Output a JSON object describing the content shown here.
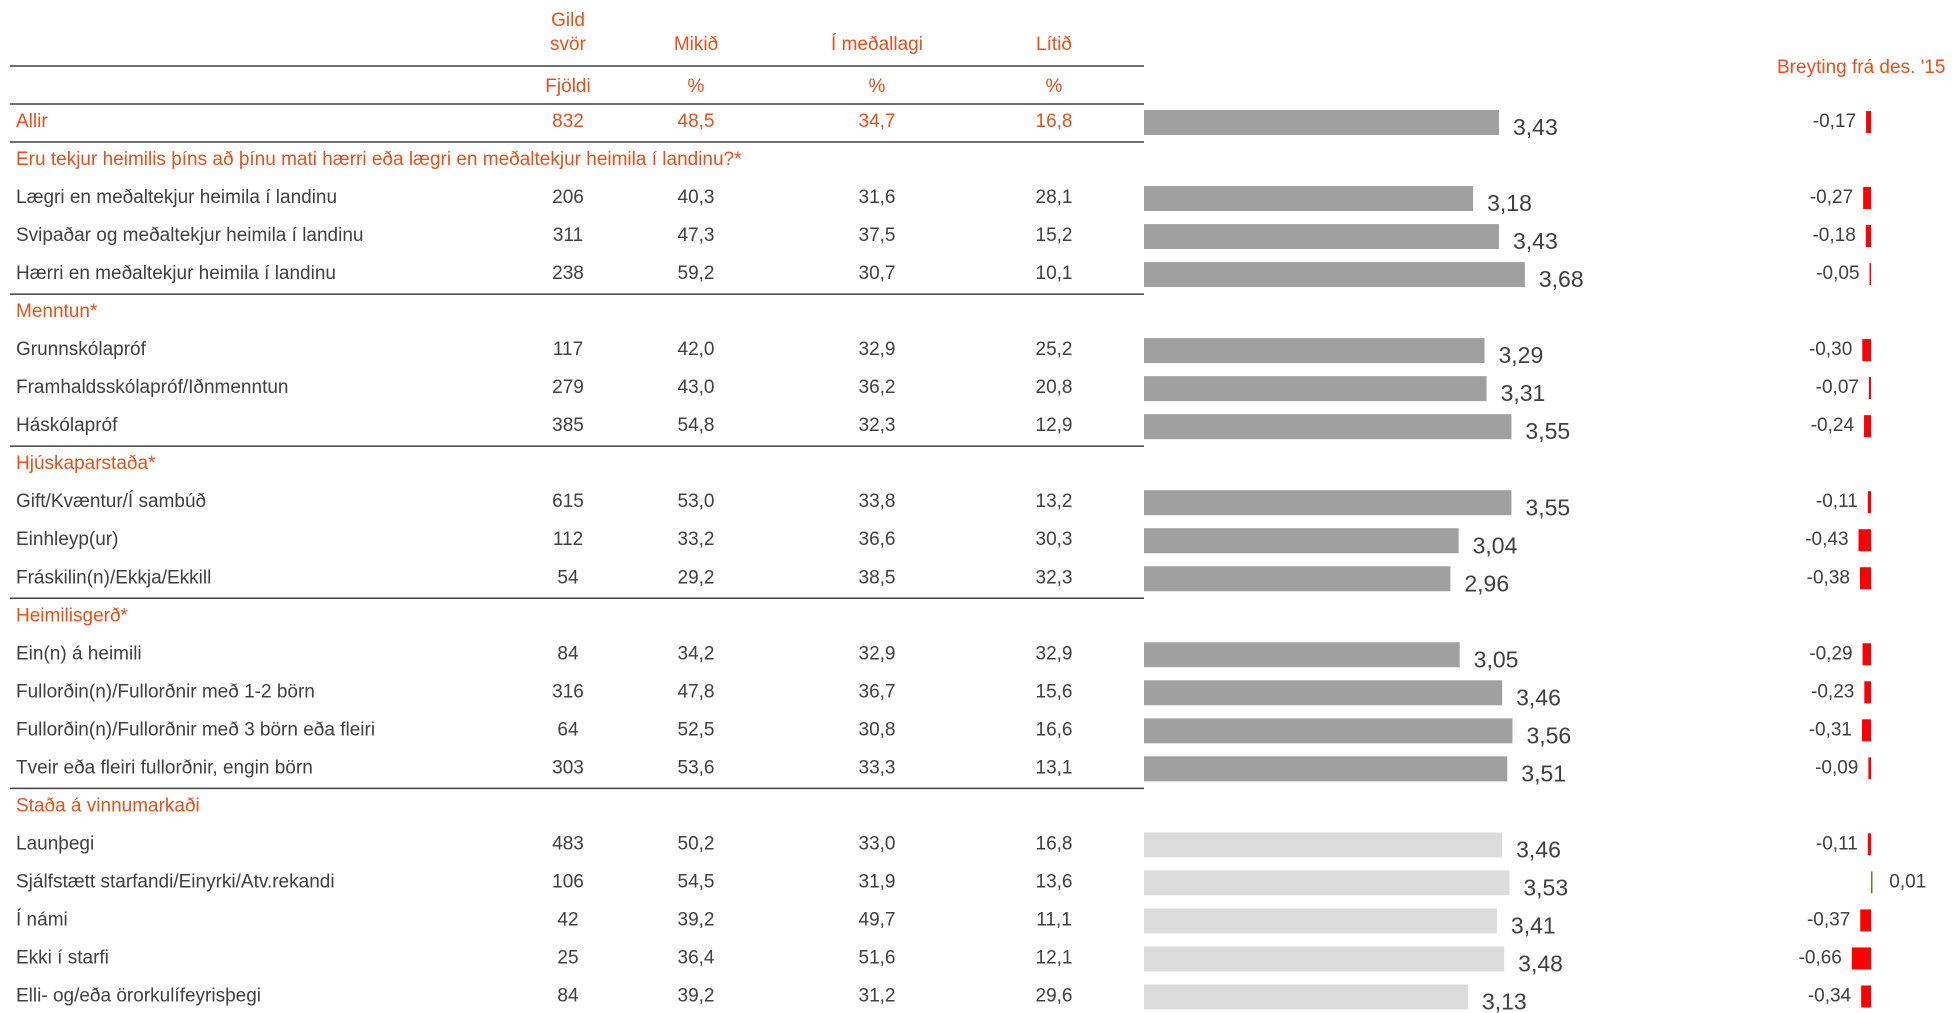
{
  "header": {
    "n_label": [
      "Gild",
      "svör"
    ],
    "mikid": "Mikið",
    "medal": "Í meðallagi",
    "litid": "Lítið",
    "n_unit": "Fjöldi",
    "mikid_unit": "%",
    "medal_unit": "%",
    "litid_unit": "%",
    "change_title": "Breyting frá des. '15"
  },
  "bar_colors": {
    "dark": "#a0a0a0",
    "light": "#dcdcdc"
  },
  "change_colors": {
    "negative": "#ff0000",
    "positive": "#548235"
  },
  "total": {
    "label": "Allir",
    "n": "832",
    "mikid": "48,5",
    "medal": "34,7",
    "litid": "16,8",
    "mean": {
      "value": 3.43,
      "label": "3,43"
    },
    "change": {
      "value": -0.17,
      "label": "-0,17"
    }
  },
  "groups": [
    {
      "title": "Eru tekjur heimilis þíns að þínu mati hærri eða lægri en meðaltekjur heimila í landinu?*",
      "bar": "dark",
      "rows": [
        {
          "label": "Lægri en meðaltekjur heimila í landinu",
          "n": "206",
          "mikid": "40,3",
          "medal": "31,6",
          "litid": "28,1",
          "mean": {
            "value": 3.18,
            "label": "3,18"
          },
          "change": {
            "value": -0.27,
            "label": "-0,27"
          }
        },
        {
          "label": "Svipaðar og meðaltekjur heimila í landinu",
          "n": "311",
          "mikid": "47,3",
          "medal": "37,5",
          "litid": "15,2",
          "mean": {
            "value": 3.43,
            "label": "3,43"
          },
          "change": {
            "value": -0.18,
            "label": "-0,18"
          }
        },
        {
          "label": "Hærri en meðaltekjur heimila í landinu",
          "n": "238",
          "mikid": "59,2",
          "medal": "30,7",
          "litid": "10,1",
          "mean": {
            "value": 3.68,
            "label": "3,68"
          },
          "change": {
            "value": -0.05,
            "label": "-0,05"
          }
        }
      ]
    },
    {
      "title": "Menntun*",
      "bar": "dark",
      "rows": [
        {
          "label": "Grunnskólapróf",
          "n": "117",
          "mikid": "42,0",
          "medal": "32,9",
          "litid": "25,2",
          "mean": {
            "value": 3.29,
            "label": "3,29"
          },
          "change": {
            "value": -0.3,
            "label": "-0,30"
          }
        },
        {
          "label": "Framhaldsskólapróf/Iðnmenntun",
          "n": "279",
          "mikid": "43,0",
          "medal": "36,2",
          "litid": "20,8",
          "mean": {
            "value": 3.31,
            "label": "3,31"
          },
          "change": {
            "value": -0.07,
            "label": "-0,07"
          }
        },
        {
          "label": "Háskólapróf",
          "n": "385",
          "mikid": "54,8",
          "medal": "32,3",
          "litid": "12,9",
          "mean": {
            "value": 3.55,
            "label": "3,55"
          },
          "change": {
            "value": -0.24,
            "label": "-0,24"
          }
        }
      ]
    },
    {
      "title": "Hjúskaparstaða*",
      "bar": "dark",
      "rows": [
        {
          "label": "Gift/Kvæntur/Í sambúð",
          "n": "615",
          "mikid": "53,0",
          "medal": "33,8",
          "litid": "13,2",
          "mean": {
            "value": 3.55,
            "label": "3,55"
          },
          "change": {
            "value": -0.11,
            "label": "-0,11"
          }
        },
        {
          "label": "Einhleyp(ur)",
          "n": "112",
          "mikid": "33,2",
          "medal": "36,6",
          "litid": "30,3",
          "mean": {
            "value": 3.04,
            "label": "3,04"
          },
          "change": {
            "value": -0.43,
            "label": "-0,43"
          }
        },
        {
          "label": "Fráskilin(n)/Ekkja/Ekkill",
          "n": "54",
          "mikid": "29,2",
          "medal": "38,5",
          "litid": "32,3",
          "mean": {
            "value": 2.96,
            "label": "2,96"
          },
          "change": {
            "value": -0.38,
            "label": "-0,38"
          }
        }
      ]
    },
    {
      "title": "Heimilisgerð*",
      "bar": "dark",
      "rows": [
        {
          "label": "Ein(n) á heimili",
          "n": "84",
          "mikid": "34,2",
          "medal": "32,9",
          "litid": "32,9",
          "mean": {
            "value": 3.05,
            "label": "3,05"
          },
          "change": {
            "value": -0.29,
            "label": "-0,29"
          }
        },
        {
          "label": "Fullorðin(n)/Fullorðnir með 1-2 börn",
          "n": "316",
          "mikid": "47,8",
          "medal": "36,7",
          "litid": "15,6",
          "mean": {
            "value": 3.46,
            "label": "3,46"
          },
          "change": {
            "value": -0.23,
            "label": "-0,23"
          }
        },
        {
          "label": "Fullorðin(n)/Fullorðnir með 3 börn eða fleiri",
          "n": "64",
          "mikid": "52,5",
          "medal": "30,8",
          "litid": "16,6",
          "mean": {
            "value": 3.56,
            "label": "3,56"
          },
          "change": {
            "value": -0.31,
            "label": "-0,31"
          }
        },
        {
          "label": "Tveir eða fleiri fullorðnir, engin börn",
          "n": "303",
          "mikid": "53,6",
          "medal": "33,3",
          "litid": "13,1",
          "mean": {
            "value": 3.51,
            "label": "3,51"
          },
          "change": {
            "value": -0.09,
            "label": "-0,09"
          }
        }
      ]
    },
    {
      "title": "Staða á vinnumarkaði",
      "bar": "light",
      "rows": [
        {
          "label": "Launþegi",
          "n": "483",
          "mikid": "50,2",
          "medal": "33,0",
          "litid": "16,8",
          "mean": {
            "value": 3.46,
            "label": "3,46"
          },
          "change": {
            "value": -0.11,
            "label": "-0,11"
          }
        },
        {
          "label": "Sjálfstætt starfandi/Einyrki/Atv.rekandi",
          "n": "106",
          "mikid": "54,5",
          "medal": "31,9",
          "litid": "13,6",
          "mean": {
            "value": 3.53,
            "label": "3,53"
          },
          "change": {
            "value": 0.01,
            "label": "0,01"
          }
        },
        {
          "label": "Í námi",
          "n": "42",
          "mikid": "39,2",
          "medal": "49,7",
          "litid": "11,1",
          "mean": {
            "value": 3.41,
            "label": "3,41"
          },
          "change": {
            "value": -0.37,
            "label": "-0,37"
          }
        },
        {
          "label": "Ekki í starfi",
          "n": "25",
          "mikid": "36,4",
          "medal": "51,6",
          "litid": "12,1",
          "mean": {
            "value": 3.48,
            "label": "3,48"
          },
          "change": {
            "value": -0.66,
            "label": "-0,66"
          }
        },
        {
          "label": "Elli- og/eða örorkulífeyrisþegi",
          "n": "84",
          "mikid": "39,2",
          "medal": "31,2",
          "litid": "29,6",
          "mean": {
            "value": 3.13,
            "label": "3,13"
          },
          "change": {
            "value": -0.34,
            "label": "-0,34"
          }
        }
      ]
    }
  ]
}
